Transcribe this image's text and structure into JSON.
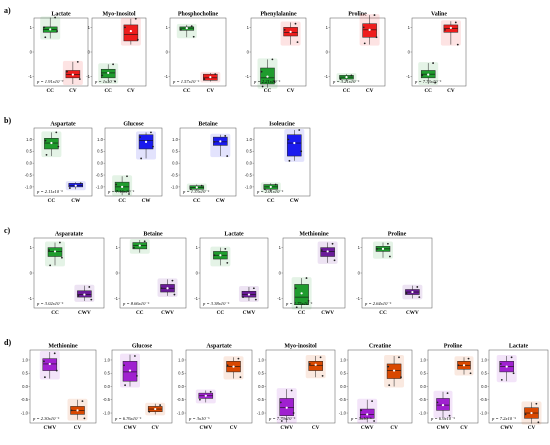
{
  "panels": [
    {
      "label": "a)",
      "rows_range": [
        -1.3,
        1.3
      ],
      "ticks": [
        -1,
        0,
        1
      ],
      "charts": [
        {
          "title": "Lactate",
          "p": "p = 1.91x10⁻⁹",
          "groups": [
            {
              "name": "CC",
              "color": "#1f9c2e",
              "q1": 0.8,
              "median": 0.92,
              "q3": 1.02,
              "min": 0.55,
              "max": 1.4,
              "mean": 0.92,
              "points": [
                1.4,
                1.0,
                0.85,
                0.6
              ]
            },
            {
              "name": "CV",
              "color": "#ee1c1c",
              "q1": -1.05,
              "median": -0.92,
              "q3": -0.75,
              "min": -1.3,
              "max": -0.4,
              "mean": -0.92,
              "points": [
                -0.4,
                -0.8,
                -1.1
              ]
            }
          ]
        },
        {
          "title": "Myo-Inositol",
          "p": "p = 1x10⁻⁵",
          "groups": [
            {
              "name": "CC",
              "color": "#1f9c2e",
              "q1": -1.05,
              "median": -0.85,
              "q3": -0.7,
              "min": -1.25,
              "max": -0.5,
              "mean": -0.85,
              "points": [
                -0.5,
                -0.95,
                -1.2
              ]
            },
            {
              "name": "CV",
              "color": "#ee1c1c",
              "q1": 0.45,
              "median": 0.72,
              "q3": 1.1,
              "min": 0.3,
              "max": 1.35,
              "mean": 0.85,
              "points": [
                1.35,
                1.0,
                0.5
              ]
            }
          ]
        },
        {
          "title": "Phosphocholine",
          "p": "p = 1.57x10⁻⁵",
          "groups": [
            {
              "name": "CC",
              "color": "#1f9c2e",
              "q1": 0.88,
              "median": 0.97,
              "q3": 1.02,
              "min": 0.6,
              "max": 1.1,
              "mean": 0.97,
              "points": [
                1.05,
                0.9,
                0.62
              ]
            },
            {
              "name": "CV",
              "color": "#ee1c1c",
              "q1": -1.15,
              "median": -1.05,
              "q3": -0.9,
              "min": -1.2,
              "max": -0.85,
              "mean": -1.02,
              "points": [
                -0.9,
                -1.1
              ]
            }
          ]
        },
        {
          "title": "Phenylalanine",
          "p": "p = 2.21x10⁻⁵",
          "groups": [
            {
              "name": "CC",
              "color": "#1f9c2e",
              "q1": -1.3,
              "median": -1.05,
              "q3": -0.65,
              "min": -1.45,
              "max": -0.3,
              "mean": -1.0,
              "points": [
                -0.3,
                -0.8,
                -1.2,
                -1.4
              ]
            },
            {
              "name": "CV",
              "color": "#ee1c1c",
              "q1": 0.65,
              "median": 0.8,
              "q3": 1.0,
              "min": 0.3,
              "max": 1.2,
              "mean": 0.82,
              "points": [
                1.15,
                0.9,
                0.4
              ]
            }
          ]
        },
        {
          "title": "Proline",
          "p": "p = 3.21x10⁻⁵",
          "groups": [
            {
              "name": "CC",
              "color": "#1f9c2e",
              "q1": -1.1,
              "median": -1.02,
              "q3": -0.95,
              "min": -1.2,
              "max": -0.9,
              "mean": -1.02,
              "points": [
                -0.95,
                -1.1
              ]
            },
            {
              "name": "CV",
              "color": "#ee1c1c",
              "q1": 0.6,
              "median": 0.9,
              "q3": 1.15,
              "min": 0.3,
              "max": 1.5,
              "mean": 0.9,
              "points": [
                1.5,
                1.0,
                0.6,
                0.35
              ]
            }
          ]
        },
        {
          "title": "Valine",
          "p": "p = 7.73x10⁻⁵",
          "groups": [
            {
              "name": "CC",
              "color": "#1f9c2e",
              "q1": -1.05,
              "median": -0.9,
              "q3": -0.75,
              "min": -1.3,
              "max": -0.45,
              "mean": -0.92,
              "points": [
                -0.45,
                -0.95,
                -1.25
              ]
            },
            {
              "name": "CV",
              "color": "#ee1c1c",
              "q1": 0.8,
              "median": 0.95,
              "q3": 1.1,
              "min": 0.3,
              "max": 1.25,
              "mean": 0.98,
              "points": [
                1.2,
                0.9,
                0.3
              ]
            }
          ]
        }
      ]
    },
    {
      "label": "b)",
      "rows_range": [
        -1.3,
        1.4
      ],
      "ticks": [
        -1.0,
        -0.5,
        0.0,
        0.5,
        1.0
      ],
      "charts": [
        {
          "title": "Aspartate",
          "p": "p = 2.11x10⁻⁶",
          "groups": [
            {
              "name": "CC",
              "color": "#1f9c2e",
              "q1": 0.6,
              "median": 0.85,
              "q3": 1.05,
              "min": 0.3,
              "max": 1.3,
              "mean": 0.85,
              "points": [
                1.3,
                0.95,
                0.7,
                0.35
              ]
            },
            {
              "name": "CW",
              "color": "#1a1aee",
              "q1": -1.0,
              "median": -0.95,
              "q3": -0.85,
              "min": -1.1,
              "max": -0.8,
              "mean": -0.95,
              "points": [
                -0.85,
                -1.05
              ]
            }
          ]
        },
        {
          "title": "Glucose",
          "p": "p = 7.16x10⁻⁶",
          "groups": [
            {
              "name": "CC",
              "color": "#1f9c2e",
              "q1": -1.2,
              "median": -1.0,
              "q3": -0.8,
              "min": -1.35,
              "max": -0.55,
              "mean": -1.0,
              "points": [
                -0.55,
                -0.9,
                -1.3
              ]
            },
            {
              "name": "CW",
              "color": "#1a1aee",
              "q1": 0.6,
              "median": 0.95,
              "q3": 1.2,
              "min": 0.2,
              "max": 1.3,
              "mean": 0.9,
              "points": [
                1.3,
                1.1,
                0.7,
                0.2
              ]
            }
          ]
        },
        {
          "title": "Betaine",
          "p": "p = 1.33x10⁻⁶",
          "groups": [
            {
              "name": "CC",
              "color": "#1f9c2e",
              "q1": -1.1,
              "median": -1.02,
              "q3": -0.95,
              "min": -1.15,
              "max": -0.9,
              "mean": -1.02,
              "points": [
                -0.95,
                -1.1
              ]
            },
            {
              "name": "CW",
              "color": "#1a1aee",
              "q1": 0.75,
              "median": 0.9,
              "q3": 1.1,
              "min": 0.3,
              "max": 1.2,
              "mean": 0.92,
              "points": [
                1.15,
                0.9,
                0.3
              ]
            }
          ]
        },
        {
          "title": "Isoleucine",
          "p": "p = 2.01x10⁻⁶",
          "groups": [
            {
              "name": "CC",
              "color": "#1f9c2e",
              "q1": -1.1,
              "median": -1.0,
              "q3": -0.9,
              "min": -1.2,
              "max": -0.85,
              "mean": -1.0,
              "points": [
                -0.9,
                -1.1
              ]
            },
            {
              "name": "CW",
              "color": "#1a1aee",
              "q1": 0.3,
              "median": 0.85,
              "q3": 1.2,
              "min": 0.1,
              "max": 1.4,
              "mean": 0.85,
              "points": [
                1.4,
                1.0,
                0.5,
                0.1
              ]
            }
          ]
        }
      ]
    },
    {
      "label": "c)",
      "rows_range": [
        -1.3,
        1.3
      ],
      "ticks": [
        -1,
        0,
        1
      ],
      "charts": [
        {
          "title": "Asparatate",
          "p": "p = 3.02x10⁻⁵",
          "groups": [
            {
              "name": "CC",
              "color": "#1f9c2e",
              "q1": 0.65,
              "median": 0.85,
              "q3": 1.0,
              "min": 0.3,
              "max": 1.2,
              "mean": 0.85,
              "points": [
                1.2,
                0.9,
                0.6,
                0.3
              ]
            },
            {
              "name": "CWV",
              "color": "#6a1a99",
              "q1": -0.95,
              "median": -0.85,
              "q3": -0.7,
              "min": -1.1,
              "max": -0.5,
              "mean": -0.85,
              "points": [
                -0.55,
                -0.9,
                -1.05
              ]
            }
          ]
        },
        {
          "title": "Betaine",
          "p": "p = 8.66x10⁻⁵",
          "groups": [
            {
              "name": "CC",
              "color": "#1f9c2e",
              "q1": 0.95,
              "median": 1.08,
              "q3": 1.2,
              "min": 0.8,
              "max": 1.3,
              "mean": 1.08,
              "points": [
                1.25,
                1.0
              ]
            },
            {
              "name": "CWV",
              "color": "#6a1a99",
              "q1": -0.75,
              "median": -0.6,
              "q3": -0.45,
              "min": -0.9,
              "max": -0.25,
              "mean": -0.6,
              "points": [
                -0.3,
                -0.6,
                -0.85
              ]
            }
          ]
        },
        {
          "title": "Lactate",
          "p": "p = 3.38x10⁻⁵",
          "groups": [
            {
              "name": "CC",
              "color": "#1f9c2e",
              "q1": 0.55,
              "median": 0.7,
              "q3": 0.85,
              "min": 0.3,
              "max": 1.0,
              "mean": 0.7,
              "points": [
                0.95,
                0.7,
                0.4
              ]
            },
            {
              "name": "CWV",
              "color": "#6a1a99",
              "q1": -0.95,
              "median": -0.85,
              "q3": -0.72,
              "min": -1.1,
              "max": -0.55,
              "mean": -0.85,
              "points": [
                -0.6,
                -0.95,
                -1.05
              ]
            }
          ]
        },
        {
          "title": "Methionine",
          "p": "p = 1.75x10⁻⁵",
          "groups": [
            {
              "name": "CC",
              "color": "#1f9c2e",
              "q1": -1.25,
              "median": -0.95,
              "q3": -0.45,
              "min": -1.4,
              "max": -0.2,
              "mean": -0.8,
              "points": [
                -0.2,
                -0.6,
                -1.1,
                -1.35
              ]
            },
            {
              "name": "CWV",
              "color": "#6a1a99",
              "q1": 0.65,
              "median": 0.85,
              "q3": 1.0,
              "min": 0.4,
              "max": 1.2,
              "mean": 0.85,
              "points": [
                1.15,
                0.9,
                0.5
              ]
            }
          ]
        },
        {
          "title": "Proline",
          "p": "p = 2.64x10⁻⁵",
          "groups": [
            {
              "name": "CC",
              "color": "#1f9c2e",
              "q1": 0.85,
              "median": 0.95,
              "q3": 1.05,
              "min": 0.6,
              "max": 1.2,
              "mean": 0.95,
              "points": [
                1.15,
                0.95,
                0.65
              ]
            },
            {
              "name": "CWV",
              "color": "#6a1a99",
              "q1": -0.85,
              "median": -0.75,
              "q3": -0.65,
              "min": -1.0,
              "max": -0.5,
              "mean": -0.75,
              "points": [
                -0.55,
                -0.8,
                -0.95
              ]
            }
          ]
        }
      ]
    },
    {
      "label": "d)",
      "rows_range": [
        -1.3,
        1.3
      ],
      "ticks": [
        -1.0,
        -0.5,
        0.0,
        0.5,
        1.0
      ],
      "charts": [
        {
          "title": "Methionine",
          "p": "p = 2.30x10⁻⁵",
          "groups": [
            {
              "name": "CWV",
              "color": "#a020d0",
              "q1": 0.6,
              "median": 0.85,
              "q3": 1.05,
              "min": 0.3,
              "max": 1.3,
              "mean": 0.85,
              "points": [
                1.25,
                0.95,
                0.6,
                0.35
              ]
            },
            {
              "name": "CV",
              "color": "#d94800",
              "q1": -1.05,
              "median": -0.9,
              "q3": -0.75,
              "min": -1.25,
              "max": -0.5,
              "mean": -0.9,
              "points": [
                -0.55,
                -0.9,
                -1.2
              ]
            }
          ]
        },
        {
          "title": "Glucose",
          "p": "p = 6.76x10⁻⁵",
          "groups": [
            {
              "name": "CWV",
              "color": "#a020d0",
              "q1": 0.2,
              "median": 0.55,
              "q3": 0.95,
              "min": 0.0,
              "max": 1.2,
              "mean": 0.6,
              "points": [
                1.15,
                0.8,
                0.4,
                0.05
              ]
            },
            {
              "name": "CV",
              "color": "#d94800",
              "q1": -0.95,
              "median": -0.85,
              "q3": -0.75,
              "min": -1.05,
              "max": -0.65,
              "mean": -0.85,
              "points": [
                -0.7,
                -0.95
              ]
            }
          ]
        },
        {
          "title": "Aspartate",
          "p": "p = 3x10⁻⁵",
          "groups": [
            {
              "name": "CWV",
              "color": "#a020d0",
              "q1": -0.45,
              "median": -0.35,
              "q3": -0.25,
              "min": -0.6,
              "max": -0.15,
              "mean": -0.35,
              "points": [
                -0.2,
                -0.5
              ]
            },
            {
              "name": "CV",
              "color": "#d94800",
              "q1": 0.55,
              "median": 0.75,
              "q3": 0.95,
              "min": 0.3,
              "max": 1.1,
              "mean": 0.75,
              "points": [
                1.05,
                0.8,
                0.35
              ]
            }
          ]
        },
        {
          "title": "Myo-inositol",
          "p": "p = 7.79x10⁻⁵",
          "groups": [
            {
              "name": "CWV",
              "color": "#a020d0",
              "q1": -1.1,
              "median": -0.8,
              "q3": -0.45,
              "min": -1.35,
              "max": -0.1,
              "mean": -0.8,
              "points": [
                -0.15,
                -0.6,
                -1.0,
                -1.3
              ]
            },
            {
              "name": "CV",
              "color": "#d94800",
              "q1": 0.6,
              "median": 0.8,
              "q3": 0.95,
              "min": 0.35,
              "max": 1.15,
              "mean": 0.82,
              "points": [
                1.1,
                0.85,
                0.4
              ]
            }
          ]
        },
        {
          "title": "Creatine",
          "p": "p = 5x10⁻⁵",
          "groups": [
            {
              "name": "CWV",
              "color": "#a020d0",
              "q1": -1.2,
              "median": -1.05,
              "q3": -0.85,
              "min": -1.35,
              "max": -0.5,
              "mean": -1.05,
              "points": [
                -0.55,
                -0.9,
                -1.3
              ]
            },
            {
              "name": "CV",
              "color": "#d94800",
              "q1": 0.3,
              "median": 0.6,
              "q3": 0.85,
              "min": 0.0,
              "max": 1.15,
              "mean": 0.6,
              "points": [
                1.1,
                0.75,
                0.35,
                0.05
              ]
            }
          ]
        },
        {
          "title": "Proline",
          "p": "p = 6.9x10⁻⁵",
          "groups": [
            {
              "name": "CWV",
              "color": "#a020d0",
              "q1": -0.9,
              "median": -0.7,
              "q3": -0.45,
              "min": -1.15,
              "max": -0.2,
              "mean": -0.7,
              "points": [
                -0.25,
                -0.6,
                -1.1
              ]
            },
            {
              "name": "CV",
              "color": "#d94800",
              "q1": 0.65,
              "median": 0.8,
              "q3": 0.95,
              "min": 0.45,
              "max": 1.1,
              "mean": 0.8,
              "points": [
                1.05,
                0.8,
                0.5
              ]
            }
          ]
        },
        {
          "title": "Lactate",
          "p": "p = 7.2x10⁻⁵",
          "groups": [
            {
              "name": "CWV",
              "color": "#a020d0",
              "q1": 0.55,
              "median": 0.75,
              "q3": 0.95,
              "min": 0.2,
              "max": 1.15,
              "mean": 0.75,
              "points": [
                1.1,
                0.85,
                0.5,
                0.25
              ]
            },
            {
              "name": "CV",
              "color": "#d94800",
              "q1": -1.2,
              "median": -1.0,
              "q3": -0.8,
              "min": -1.4,
              "max": -0.6,
              "mean": -1.0,
              "points": [
                -0.65,
                -1.05,
                -1.35
              ]
            }
          ]
        }
      ]
    }
  ],
  "chart_data": {
    "type": "box",
    "title": "",
    "description_groups": [
      "CC",
      "CV",
      "CW",
      "CWV"
    ]
  }
}
